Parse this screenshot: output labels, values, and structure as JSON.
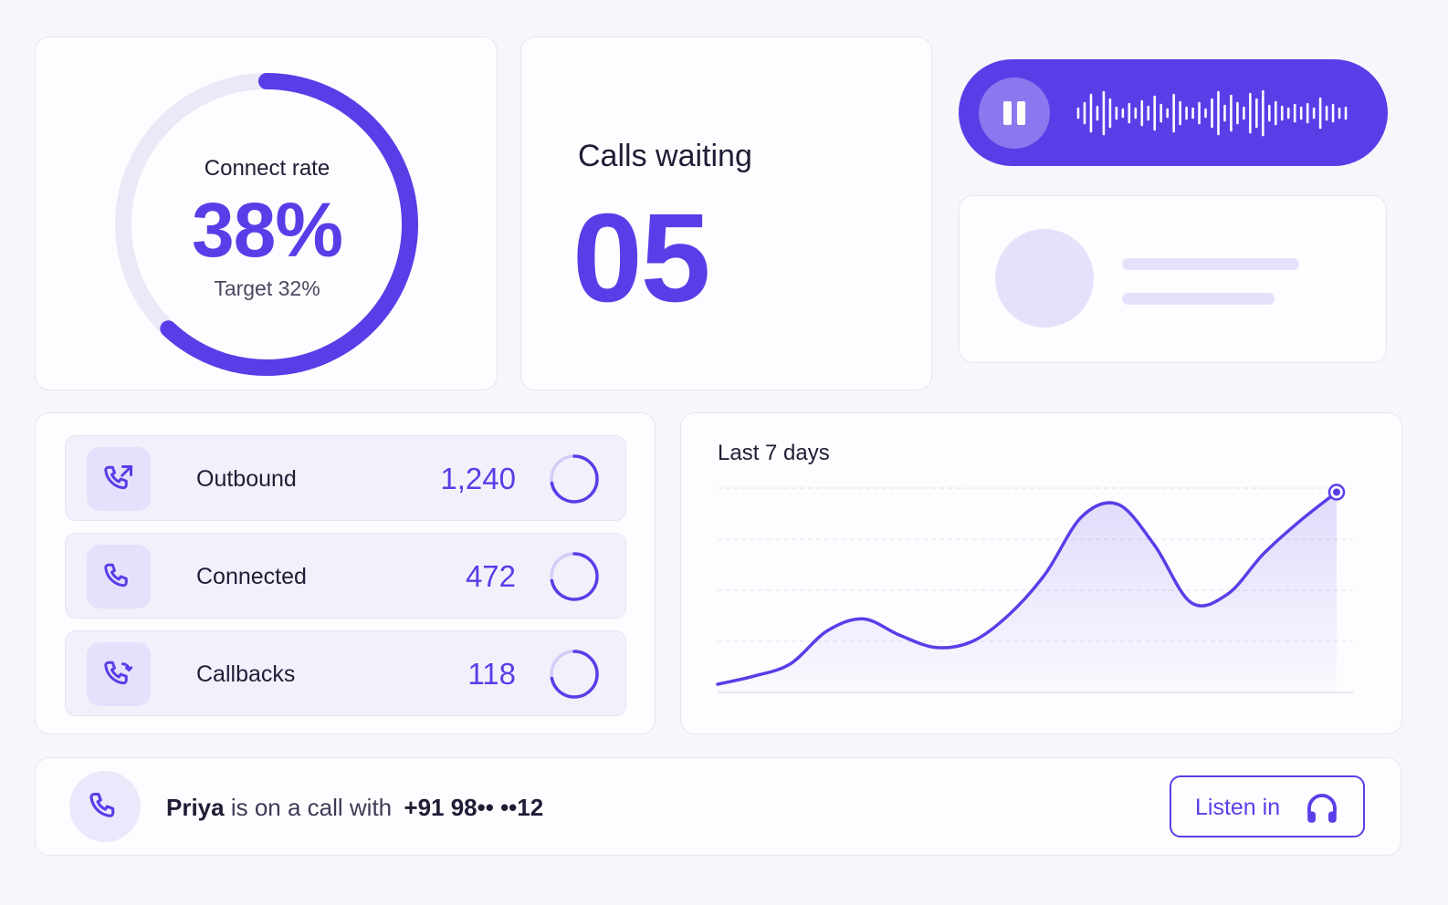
{
  "connect_rate": {
    "label": "Connect rate",
    "value": "38%",
    "target": "Target 32%",
    "ring_fraction": 0.62
  },
  "calls_waiting": {
    "label": "Calls waiting",
    "value": "05"
  },
  "audio_player": {
    "state": "playing",
    "pause_icon": "pause-icon"
  },
  "stats": [
    {
      "label": "Outbound",
      "value": "1,240",
      "icon": "phone-outgoing-icon",
      "progress": 0.72
    },
    {
      "label": "Connected",
      "value": "472",
      "icon": "phone-icon",
      "progress": 0.72
    },
    {
      "label": "Callbacks",
      "value": "118",
      "icon": "phone-callback-icon",
      "progress": 0.72
    }
  ],
  "chart": {
    "title": "Last 7 days"
  },
  "chart_data": {
    "type": "area",
    "title": "Last 7 days",
    "xlabel": "",
    "ylabel": "",
    "grid": true,
    "x": [
      0,
      1,
      2,
      3,
      4,
      5,
      6,
      7,
      8,
      9,
      10,
      11,
      12,
      13,
      14,
      15,
      16,
      17
    ],
    "y": [
      4,
      8,
      14,
      30,
      36,
      28,
      22,
      25,
      38,
      58,
      86,
      92,
      72,
      44,
      48,
      68,
      84,
      98
    ],
    "ylim": [
      0,
      100
    ]
  },
  "live_call": {
    "agent": "Priya",
    "text": "is on a call with",
    "number": "+91 98•• ••12",
    "button_label": "Listen in",
    "button_icon": "headphones-icon"
  },
  "colors": {
    "accent": "#5b3de8",
    "accent_light": "#e5e0fb",
    "background": "#f7f6fb"
  }
}
